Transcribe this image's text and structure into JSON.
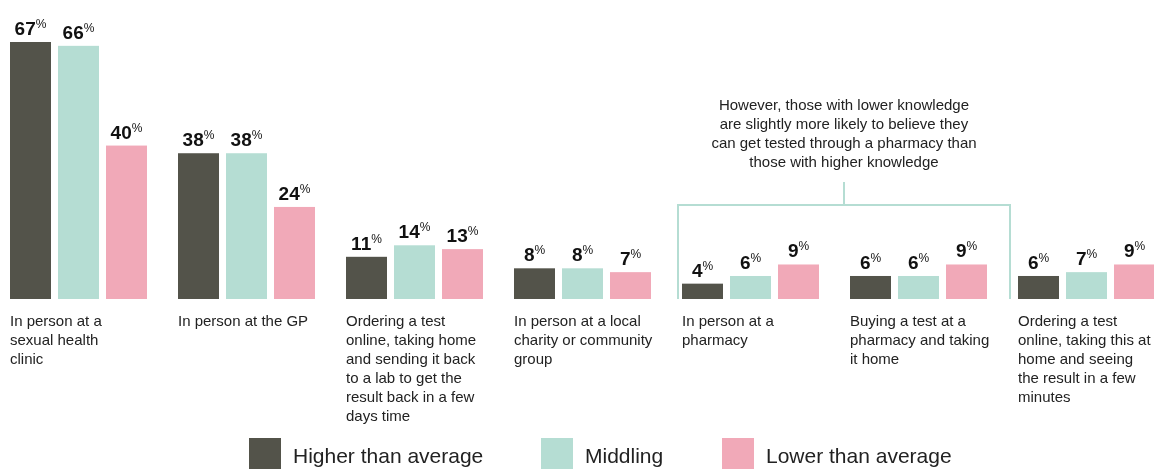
{
  "chart_data": {
    "type": "bar",
    "categories": [
      "In person at a sexual health clinic",
      "In person at the GP",
      "Ordering a test online, taking home and sending it back to a lab to get the result back in a few days time",
      "In person at a local charity or community group",
      "In person at a pharmacy",
      "Buying a test at a pharmacy and taking it home",
      "Ordering a test online, taking this at home and seeing the result in a few minutes"
    ],
    "series": [
      {
        "name": "Higher than average",
        "color": "#53534a",
        "values": [
          67,
          38,
          11,
          8,
          4,
          6,
          6
        ],
        "value_labels": [
          "67$^{%}$",
          "38$^{%}$",
          "11$^{%}$",
          "8$^{%}$",
          "4$^{%}$",
          "6$^{%}$",
          "6$^{%}$"
        ]
      },
      {
        "name": "Middling",
        "color": "#b5ddd3",
        "values": [
          66,
          38,
          14,
          8,
          6,
          6,
          7
        ],
        "value_labels": [
          "66$^{%}$",
          "38$^{%}$",
          "14$^{%}$",
          "8$^{%}$",
          "6$^{%}$",
          "6$^{%}$",
          "7$^{%}$"
        ]
      },
      {
        "name": "Lower than average",
        "color": "#f1a9b8",
        "values": [
          40,
          24,
          13,
          7,
          9,
          9,
          9
        ],
        "value_labels": [
          "40$^{%}$",
          "24$^{%}$",
          "13$^{%}$",
          "7$^{%}$",
          "9$^{%}$",
          "9$^{%}$",
          "9$^{%}$"
        ]
      }
    ],
    "annotations": [
      "However, those with lower knowledge are slightly more likely to believe they can get tested through a pharmacy than those with higher knowledge"
    ],
    "legend": "bottom"
  }
}
